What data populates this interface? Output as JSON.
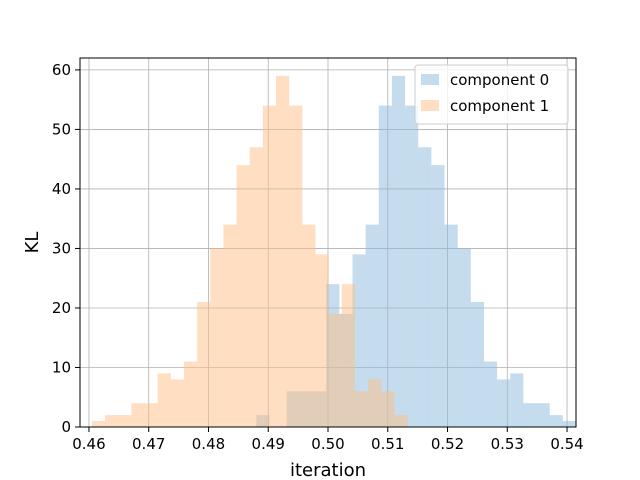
{
  "chart_data": {
    "type": "bar",
    "subtype": "histogram",
    "xlabel": "iteration",
    "ylabel": "KL",
    "xlim": [
      0.4585,
      0.5415
    ],
    "ylim": [
      0,
      62
    ],
    "xticks": [
      "0.46",
      "0.47",
      "0.48",
      "0.49",
      "0.50",
      "0.51",
      "0.52",
      "0.53",
      "0.54"
    ],
    "yticks": [
      "0",
      "10",
      "20",
      "30",
      "40",
      "50",
      "60"
    ],
    "grid": true,
    "legend_position": "top-right",
    "overlap_color": "#c49a6c",
    "series": [
      {
        "name": "component 0",
        "color": "#8ab9db",
        "bins": [
          {
            "x0": 0.488,
            "x1": 0.4902,
            "value": 2
          },
          {
            "x0": 0.4931,
            "x1": 0.4953,
            "value": 6
          },
          {
            "x0": 0.4953,
            "x1": 0.4975,
            "value": 6
          },
          {
            "x0": 0.4975,
            "x1": 0.4997,
            "value": 6
          },
          {
            "x0": 0.4997,
            "x1": 0.5019,
            "value": 24
          },
          {
            "x0": 0.5019,
            "x1": 0.5041,
            "value": 19
          },
          {
            "x0": 0.5041,
            "x1": 0.5063,
            "value": 29
          },
          {
            "x0": 0.5063,
            "x1": 0.5085,
            "value": 34
          },
          {
            "x0": 0.5085,
            "x1": 0.5107,
            "value": 54
          },
          {
            "x0": 0.5107,
            "x1": 0.5129,
            "value": 59
          },
          {
            "x0": 0.5129,
            "x1": 0.5151,
            "value": 54
          },
          {
            "x0": 0.5151,
            "x1": 0.5173,
            "value": 47
          },
          {
            "x0": 0.5173,
            "x1": 0.5195,
            "value": 44
          },
          {
            "x0": 0.5195,
            "x1": 0.5217,
            "value": 34
          },
          {
            "x0": 0.5217,
            "x1": 0.5239,
            "value": 30
          },
          {
            "x0": 0.5239,
            "x1": 0.5261,
            "value": 21
          },
          {
            "x0": 0.5261,
            "x1": 0.5283,
            "value": 11
          },
          {
            "x0": 0.5283,
            "x1": 0.5305,
            "value": 8
          },
          {
            "x0": 0.5305,
            "x1": 0.5327,
            "value": 9
          },
          {
            "x0": 0.5327,
            "x1": 0.5349,
            "value": 4
          },
          {
            "x0": 0.5349,
            "x1": 0.5371,
            "value": 4
          },
          {
            "x0": 0.5371,
            "x1": 0.5393,
            "value": 2
          },
          {
            "x0": 0.5393,
            "x1": 0.5415,
            "value": 1
          }
        ]
      },
      {
        "name": "component 1",
        "color": "#ffbe86",
        "bins": [
          {
            "x0": 0.4605,
            "x1": 0.4627,
            "value": 1
          },
          {
            "x0": 0.4627,
            "x1": 0.4649,
            "value": 2
          },
          {
            "x0": 0.4649,
            "x1": 0.4671,
            "value": 2
          },
          {
            "x0": 0.4671,
            "x1": 0.4693,
            "value": 4
          },
          {
            "x0": 0.4693,
            "x1": 0.4715,
            "value": 4
          },
          {
            "x0": 0.4715,
            "x1": 0.4737,
            "value": 9
          },
          {
            "x0": 0.4737,
            "x1": 0.4759,
            "value": 8
          },
          {
            "x0": 0.4759,
            "x1": 0.4781,
            "value": 11
          },
          {
            "x0": 0.4781,
            "x1": 0.4803,
            "value": 21
          },
          {
            "x0": 0.4803,
            "x1": 0.4825,
            "value": 30
          },
          {
            "x0": 0.4825,
            "x1": 0.4847,
            "value": 34
          },
          {
            "x0": 0.4847,
            "x1": 0.4869,
            "value": 44
          },
          {
            "x0": 0.4869,
            "x1": 0.4891,
            "value": 47
          },
          {
            "x0": 0.4891,
            "x1": 0.4913,
            "value": 54
          },
          {
            "x0": 0.4913,
            "x1": 0.4935,
            "value": 59
          },
          {
            "x0": 0.4935,
            "x1": 0.4957,
            "value": 54
          },
          {
            "x0": 0.4957,
            "x1": 0.4979,
            "value": 34
          },
          {
            "x0": 0.4979,
            "x1": 0.5001,
            "value": 29
          },
          {
            "x0": 0.5001,
            "x1": 0.5023,
            "value": 19
          },
          {
            "x0": 0.5023,
            "x1": 0.5045,
            "value": 24
          },
          {
            "x0": 0.5045,
            "x1": 0.5067,
            "value": 6
          },
          {
            "x0": 0.5067,
            "x1": 0.5089,
            "value": 8
          },
          {
            "x0": 0.5089,
            "x1": 0.5111,
            "value": 6
          },
          {
            "x0": 0.5111,
            "x1": 0.5133,
            "value": 2
          }
        ]
      }
    ]
  }
}
